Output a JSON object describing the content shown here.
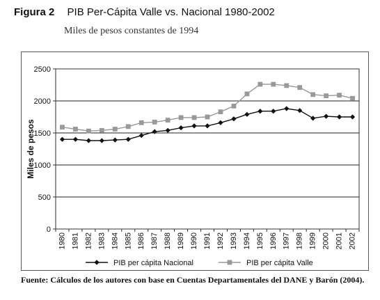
{
  "figure": {
    "label": "Figura 2",
    "title": "PIB Per-Cápita Valle vs. Nacional 1980-2002",
    "subtitle": "Miles de pesos constantes de 1994"
  },
  "source_note": "Fuente: Cálculos de los autores con base en Cuentas Departamentales del DANE y Barón (2004).",
  "chart_data": {
    "type": "line",
    "title": "PIB Per-Cápita Valle vs. Nacional 1980-2002",
    "subtitle": "Miles de pesos constantes de 1994",
    "xlabel": "",
    "ylabel": "Miles de pesos",
    "ylim": [
      0,
      2500
    ],
    "yticks": [
      0,
      500,
      1000,
      1500,
      2000,
      2500
    ],
    "grid": "horizontal",
    "legend_position": "bottom",
    "categories": [
      "1980",
      "1981",
      "1982",
      "1983",
      "1984",
      "1985",
      "1986",
      "1987",
      "1988",
      "1989",
      "1990",
      "1991",
      "1992",
      "1993",
      "1994",
      "1995",
      "1996",
      "1997",
      "1998",
      "1999",
      "2000",
      "2001",
      "2002"
    ],
    "series": [
      {
        "name": "PIB per cápita Nacional",
        "marker": "diamond",
        "color": "#111111",
        "values": [
          1400,
          1400,
          1380,
          1380,
          1390,
          1400,
          1460,
          1520,
          1540,
          1580,
          1610,
          1610,
          1660,
          1720,
          1790,
          1840,
          1840,
          1880,
          1850,
          1730,
          1760,
          1750,
          1750
        ]
      },
      {
        "name": "PIB per cápita Valle",
        "marker": "square",
        "color": "#999999",
        "values": [
          1590,
          1560,
          1530,
          1540,
          1560,
          1600,
          1660,
          1670,
          1700,
          1740,
          1740,
          1750,
          1830,
          1920,
          2110,
          2260,
          2260,
          2240,
          2210,
          2100,
          2080,
          2090,
          2040
        ]
      }
    ]
  }
}
